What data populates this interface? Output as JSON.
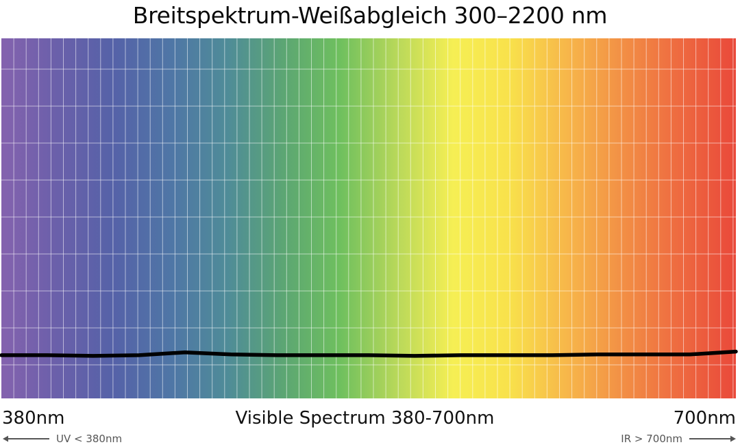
{
  "title": "Breitspektrum-Weißabgleich 300–2200 nm",
  "labels": {
    "left": "380nm",
    "center": "Visible Spectrum 380-700nm",
    "right": "700nm",
    "uv_note": "UV < 380nm",
    "ir_note": "IR > 700nm"
  },
  "icons": {
    "left_arrow": "arrow-left-icon",
    "right_arrow": "arrow-right-icon"
  },
  "chart_data": {
    "type": "line",
    "background": "visible-spectrum-gradient",
    "grid": true,
    "spectrum_colors": [
      "#8462ae",
      "#6a60aa",
      "#5562a8",
      "#4f76a6",
      "#4f8c98",
      "#5ca673",
      "#6fc05e",
      "#b8d85a",
      "#f6ef54",
      "#f8e14b",
      "#f7b74a",
      "#f28f45",
      "#ee6a40",
      "#e9493a"
    ],
    "x": [
      380,
      400,
      420,
      440,
      460,
      480,
      500,
      520,
      540,
      560,
      580,
      600,
      620,
      640,
      660,
      680,
      700
    ],
    "series": [
      {
        "color": "#000000",
        "values": [
          0.12,
          0.12,
          0.118,
          0.12,
          0.128,
          0.122,
          0.12,
          0.12,
          0.12,
          0.118,
          0.12,
          0.12,
          0.12,
          0.122,
          0.122,
          0.122,
          0.13
        ]
      }
    ],
    "xlim": [
      380,
      700
    ],
    "ylim": [
      0,
      1
    ]
  }
}
